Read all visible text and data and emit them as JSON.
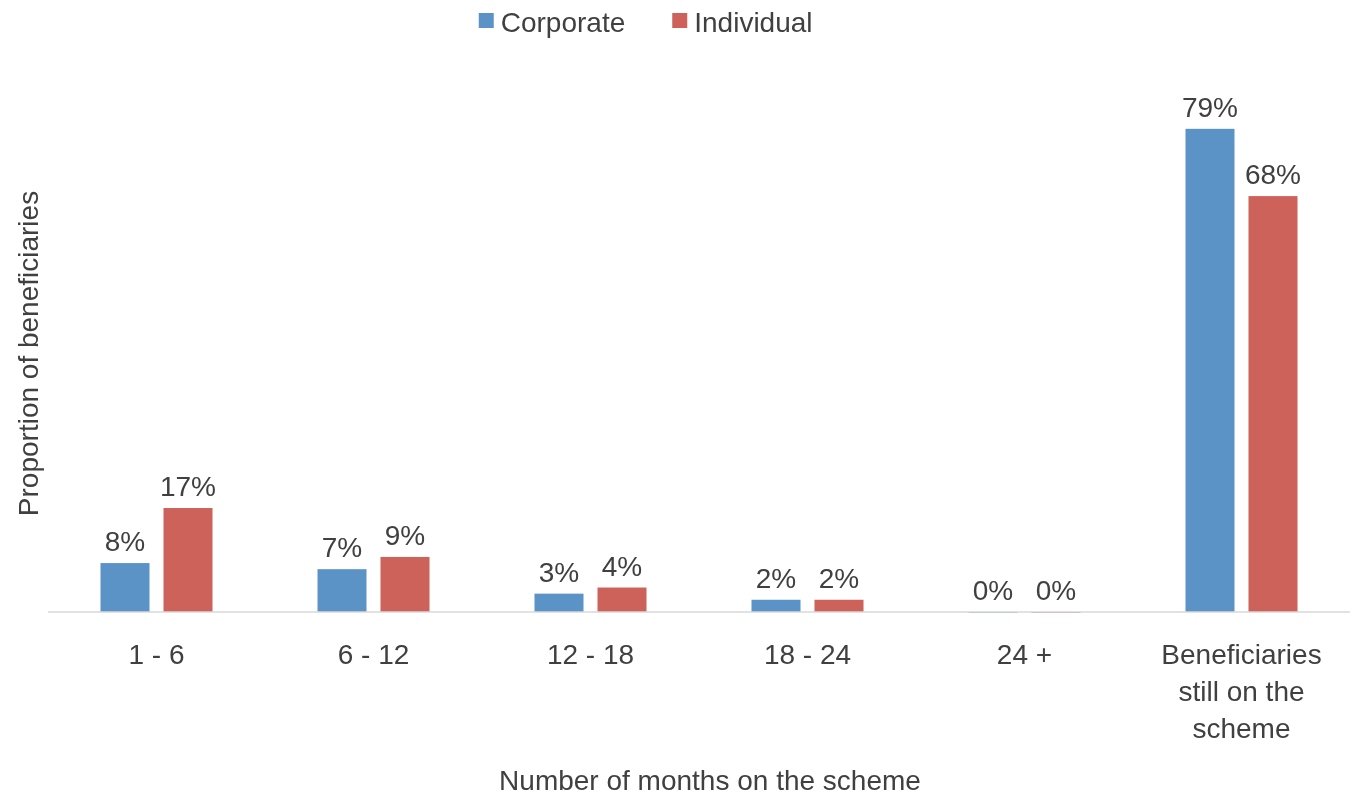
{
  "chart_data": {
    "type": "bar",
    "xlabel": "Number of months on the scheme",
    "ylabel": "Proportion of beneficiaries",
    "categories": [
      "1 - 6",
      "6 - 12",
      "12 - 18",
      "18 - 24",
      "24 +",
      "Beneficiaries still on the scheme"
    ],
    "series": [
      {
        "name": "Corporate",
        "color": "#5b93c7",
        "values": [
          8,
          7,
          3,
          2,
          0,
          79
        ],
        "value_labels": [
          "8%",
          "7%",
          "3%",
          "2%",
          "0%",
          "79%"
        ]
      },
      {
        "name": "Individual",
        "color": "#cc625a",
        "values": [
          17,
          9,
          4,
          2,
          0,
          68
        ],
        "value_labels": [
          "17%",
          "9%",
          "4%",
          "2%",
          "0%",
          "68%"
        ]
      }
    ],
    "legend": "top",
    "grid": false
  }
}
